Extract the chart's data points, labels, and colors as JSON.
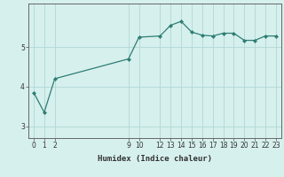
{
  "x": [
    0,
    1,
    2,
    9,
    10,
    12,
    13,
    14,
    15,
    16,
    17,
    18,
    19,
    20,
    21,
    22,
    23
  ],
  "y": [
    3.85,
    3.35,
    4.2,
    4.7,
    5.25,
    5.28,
    5.55,
    5.65,
    5.38,
    5.3,
    5.28,
    5.35,
    5.35,
    5.17,
    5.17,
    5.28,
    5.28
  ],
  "line_color": "#2e7d72",
  "marker_color": "#2e7d72",
  "bg_color": "#d6f0ee",
  "grid_color_major": "#b0d8d4",
  "grid_color_minor": "#c8e8e5",
  "xlabel": "Humidex (Indice chaleur)",
  "ylim": [
    2.7,
    6.1
  ],
  "xlim": [
    -0.5,
    23.5
  ],
  "yticks": [
    3,
    4,
    5
  ],
  "xticks": [
    0,
    1,
    2,
    9,
    10,
    12,
    13,
    14,
    15,
    16,
    17,
    18,
    19,
    20,
    21,
    22,
    23
  ],
  "tick_fontsize": 5.5,
  "xlabel_fontsize": 6.5,
  "linewidth": 0.9,
  "markersize": 2.2,
  "spine_color": "#666666"
}
